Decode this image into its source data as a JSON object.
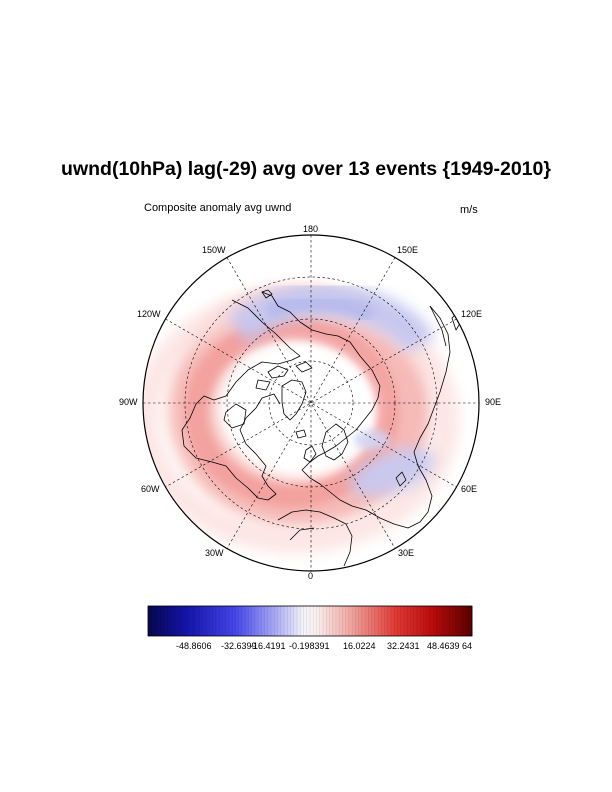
{
  "title": "uwnd(10hPa) lag(-29) avg over 13 events {1949-2010}",
  "subtitle_left": "Composite anomaly avg uwnd",
  "subtitle_right": "m/s",
  "longitude_labels": {
    "lon_180": "180",
    "lon_150w": "150W",
    "lon_150e": "150E",
    "lon_120w": "120W",
    "lon_120e": "120E",
    "lon_90w": "90W",
    "lon_90e": "90E",
    "lon_60w": "60W",
    "lon_60e": "60E",
    "lon_30w": "30W",
    "lon_30e": "30E",
    "lon_0": "0"
  },
  "colorbar": {
    "labels": [
      "-48.8606",
      "-32.6399",
      "-16.4191",
      "-0.198391",
      "16.0224",
      "32.2431",
      "48.4639",
      "64"
    ],
    "min_color": "#07074f",
    "mid_color": "#ffffff",
    "max_color": "#5a0000"
  },
  "chart_data": {
    "type": "polar-stereographic-contour-fill",
    "projection": "north polar stereographic",
    "variable": "uwnd",
    "units": "m/s",
    "level": "10hPa",
    "lag": -29,
    "events": 13,
    "period": "1949-2010",
    "color_levels": [
      -48.8606,
      -32.6399,
      -16.4191,
      -0.198391,
      16.0224,
      32.2431,
      48.4639,
      64
    ],
    "grid": true,
    "features": [
      {
        "name": "positive-ring",
        "description": "westerly anomaly ring around the pole, strongest toward Eurasia/Atlantic side",
        "sign": "positive"
      },
      {
        "name": "negative-arc-pacific",
        "description": "easterly anomaly arc over the North Pacific",
        "sign": "negative"
      },
      {
        "name": "negative-patch-europe",
        "description": "easterly anomaly patch near Europe / Middle East",
        "sign": "negative"
      }
    ]
  }
}
